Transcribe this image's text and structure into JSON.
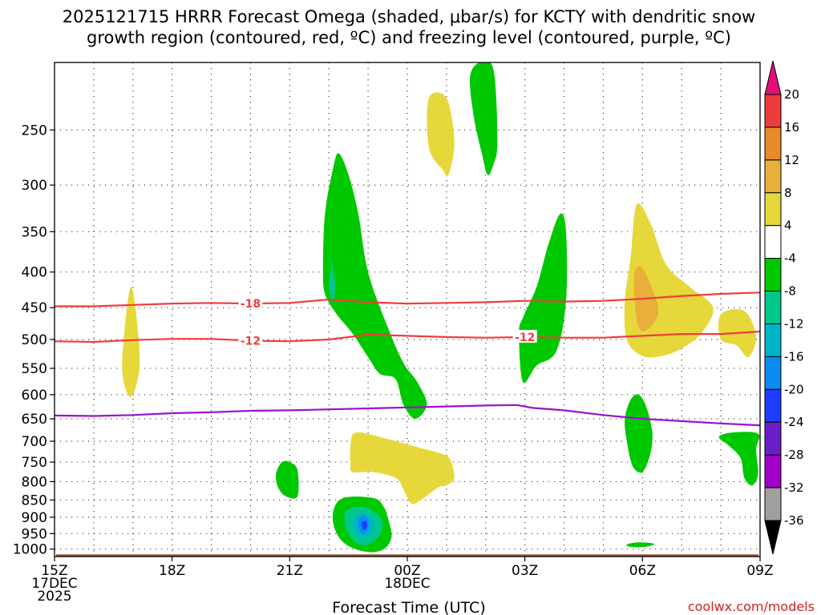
{
  "chart_data": {
    "type": "heatmap",
    "title_line1": "2025121715 HRRR Forecast Omega (shaded, μbar/s) for KCTY with dendritic snow",
    "title_line2": "growth region (contoured, red, ºC) and freezing level (contoured, purple, ºC)",
    "xlabel": "Forecast Time (UTC)",
    "credit": "coolwx.com/models",
    "x_range_hours": [
      0,
      18
    ],
    "x_ticks": [
      {
        "hour": 0,
        "lines": [
          "15Z",
          "17DEC",
          "2025"
        ]
      },
      {
        "hour": 3,
        "lines": [
          "18Z"
        ]
      },
      {
        "hour": 6,
        "lines": [
          "21Z"
        ]
      },
      {
        "hour": 9,
        "lines": [
          "00Z",
          "18DEC"
        ]
      },
      {
        "hour": 12,
        "lines": [
          "03Z"
        ]
      },
      {
        "hour": 15,
        "lines": [
          "06Z"
        ]
      },
      {
        "hour": 18,
        "lines": [
          "09Z"
        ]
      }
    ],
    "y_range_hpa": [
      1025,
      200
    ],
    "y_ticks": [
      250,
      300,
      350,
      400,
      450,
      500,
      550,
      600,
      650,
      700,
      750,
      800,
      850,
      900,
      950,
      1000
    ],
    "colorbar": {
      "labels": [
        "20",
        "16",
        "12",
        "8",
        "4",
        "-4",
        "-8",
        "-12",
        "-16",
        "-20",
        "-24",
        "-28",
        "-32",
        "-36"
      ],
      "bands": [
        {
          "lo": 16,
          "hi": 20,
          "color": "#ee3b3b"
        },
        {
          "lo": 12,
          "hi": 16,
          "color": "#e8892a"
        },
        {
          "lo": 8,
          "hi": 12,
          "color": "#e8b03a"
        },
        {
          "lo": 4,
          "hi": 8,
          "color": "#e6d83a"
        },
        {
          "lo": -4,
          "hi": 4,
          "color": "#ffffff"
        },
        {
          "lo": -8,
          "hi": -4,
          "color": "#00c800"
        },
        {
          "lo": -12,
          "hi": -8,
          "color": "#00c88c"
        },
        {
          "lo": -16,
          "hi": -12,
          "color": "#00b4c8"
        },
        {
          "lo": -20,
          "hi": -16,
          "color": "#0a8cf0"
        },
        {
          "lo": -24,
          "hi": -20,
          "color": "#1e3cff"
        },
        {
          "lo": -28,
          "hi": -24,
          "color": "#6a1ec8"
        },
        {
          "lo": -32,
          "hi": -28,
          "color": "#a000c8"
        },
        {
          "lo": -36,
          "hi": -32,
          "color": "#a0a0a0"
        }
      ],
      "overflow_high_color": "#e0107a",
      "overflow_low_color": "#000000"
    },
    "omega_regions": [
      {
        "name": "updraft-main-column",
        "value": -6,
        "color": "#00c800",
        "points": [
          [
            6.85,
            395
          ],
          [
            6.9,
            330
          ],
          [
            7.1,
            285
          ],
          [
            7.25,
            270
          ],
          [
            7.5,
            290
          ],
          [
            7.75,
            330
          ],
          [
            8.0,
            400
          ],
          [
            8.5,
            480
          ],
          [
            8.9,
            540
          ],
          [
            9.25,
            575
          ],
          [
            9.5,
            620
          ],
          [
            9.2,
            650
          ],
          [
            8.9,
            620
          ],
          [
            8.7,
            570
          ],
          [
            8.3,
            560
          ],
          [
            8.0,
            530
          ],
          [
            7.6,
            490
          ],
          [
            7.2,
            460
          ],
          [
            6.9,
            430
          ]
        ]
      },
      {
        "name": "updraft-main-core",
        "value": -9,
        "color": "#00c88c",
        "points": [
          [
            7.0,
            420
          ],
          [
            7.05,
            395
          ],
          [
            7.05,
            380
          ],
          [
            7.15,
            410
          ],
          [
            7.15,
            430
          ],
          [
            7.1,
            440
          ]
        ]
      },
      {
        "name": "updraft-top-01z",
        "value": -6,
        "color": "#00c800",
        "points": [
          [
            10.6,
            210
          ],
          [
            10.85,
            200
          ],
          [
            11.2,
            205
          ],
          [
            11.3,
            260
          ],
          [
            11.2,
            280
          ],
          [
            11.05,
            290
          ],
          [
            10.9,
            270
          ],
          [
            10.7,
            240
          ]
        ]
      },
      {
        "name": "updraft-03z-column",
        "value": -6,
        "color": "#00c800",
        "points": [
          [
            11.85,
            490
          ],
          [
            11.95,
            465
          ],
          [
            12.3,
            420
          ],
          [
            12.6,
            365
          ],
          [
            12.9,
            330
          ],
          [
            13.05,
            350
          ],
          [
            13.05,
            440
          ],
          [
            12.8,
            520
          ],
          [
            12.3,
            545
          ],
          [
            11.95,
            575
          ]
        ]
      },
      {
        "name": "updraft-05z-lower",
        "value": -6,
        "color": "#00c800",
        "points": [
          [
            14.55,
            650
          ],
          [
            14.7,
            610
          ],
          [
            14.9,
            600
          ],
          [
            15.1,
            625
          ],
          [
            15.25,
            680
          ],
          [
            15.2,
            730
          ],
          [
            15.0,
            775
          ],
          [
            14.75,
            760
          ],
          [
            14.6,
            700
          ]
        ]
      },
      {
        "name": "updraft-08z-lower",
        "value": -6,
        "color": "#00c800",
        "points": [
          [
            16.95,
            690
          ],
          [
            17.3,
            680
          ],
          [
            17.95,
            683
          ],
          [
            17.9,
            720
          ],
          [
            17.95,
            780
          ],
          [
            17.8,
            810
          ],
          [
            17.6,
            790
          ],
          [
            17.5,
            740
          ],
          [
            17.2,
            710
          ]
        ]
      },
      {
        "name": "updraft-21z-lower",
        "value": -6,
        "color": "#00c800",
        "points": [
          [
            5.65,
            780
          ],
          [
            5.8,
            750
          ],
          [
            6.0,
            750
          ],
          [
            6.2,
            770
          ],
          [
            6.2,
            840
          ],
          [
            5.9,
            840
          ],
          [
            5.7,
            815
          ]
        ]
      },
      {
        "name": "updraft-2230z-lower",
        "value": -6,
        "color": "#00c800",
        "points": [
          [
            7.35,
            845
          ],
          [
            8.15,
            845
          ],
          [
            8.4,
            870
          ],
          [
            8.5,
            900
          ],
          [
            8.6,
            960
          ],
          [
            8.4,
            1000
          ],
          [
            8.0,
            1010
          ],
          [
            7.5,
            990
          ],
          [
            7.2,
            950
          ],
          [
            7.1,
            890
          ]
        ]
      },
      {
        "name": "updraft-2230z-core1",
        "value": -9,
        "color": "#00c88c",
        "points": [
          [
            7.45,
            880
          ],
          [
            7.8,
            870
          ],
          [
            8.1,
            880
          ],
          [
            8.35,
            910
          ],
          [
            8.3,
            955
          ],
          [
            8.0,
            985
          ],
          [
            7.7,
            980
          ],
          [
            7.5,
            950
          ],
          [
            7.4,
            915
          ]
        ]
      },
      {
        "name": "updraft-2230z-core2",
        "value": -14,
        "color": "#00b4c8",
        "points": [
          [
            7.65,
            900
          ],
          [
            7.9,
            890
          ],
          [
            8.1,
            905
          ],
          [
            8.15,
            935
          ],
          [
            7.95,
            960
          ],
          [
            7.75,
            955
          ],
          [
            7.6,
            930
          ]
        ]
      },
      {
        "name": "updraft-2230z-core3",
        "value": -18,
        "color": "#0a8cf0",
        "points": [
          [
            7.75,
            910
          ],
          [
            7.9,
            895
          ],
          [
            8.0,
            910
          ],
          [
            8.0,
            935
          ],
          [
            7.9,
            950
          ],
          [
            7.8,
            940
          ]
        ]
      },
      {
        "name": "updraft-2230z-core4",
        "value": -22,
        "color": "#1e3cff",
        "points": [
          [
            7.85,
            915
          ],
          [
            7.95,
            912
          ],
          [
            7.97,
            930
          ],
          [
            7.9,
            940
          ],
          [
            7.85,
            930
          ]
        ]
      },
      {
        "name": "updraft-05z-surface",
        "value": -6,
        "color": "#00c800",
        "points": [
          [
            14.6,
            985
          ],
          [
            14.9,
            978
          ],
          [
            15.3,
            983
          ],
          [
            15.05,
            993
          ],
          [
            14.7,
            993
          ]
        ]
      },
      {
        "name": "subsidence-1630z",
        "value": 5,
        "color": "#e6d83a",
        "points": [
          [
            1.75,
            510
          ],
          [
            1.95,
            420
          ],
          [
            2.15,
            500
          ],
          [
            2.15,
            560
          ],
          [
            1.95,
            605
          ],
          [
            1.75,
            570
          ]
        ]
      },
      {
        "name": "subsidence-0030z-upper",
        "value": 5,
        "color": "#e6d83a",
        "points": [
          [
            9.55,
            225
          ],
          [
            10.0,
            225
          ],
          [
            10.2,
            260
          ],
          [
            10.05,
            290
          ],
          [
            9.9,
            285
          ],
          [
            9.55,
            265
          ]
        ]
      },
      {
        "name": "subsidence-06z",
        "value": 6,
        "color": "#e6d83a",
        "points": [
          [
            14.7,
            380
          ],
          [
            14.85,
            320
          ],
          [
            15.2,
            340
          ],
          [
            15.6,
            390
          ],
          [
            16.2,
            420
          ],
          [
            16.8,
            450
          ],
          [
            16.5,
            490
          ],
          [
            16.0,
            515
          ],
          [
            15.5,
            528
          ],
          [
            15.0,
            528
          ],
          [
            14.6,
            500
          ],
          [
            14.55,
            440
          ]
        ]
      },
      {
        "name": "subsidence-06z-core",
        "value": 10,
        "color": "#e8b03a",
        "points": [
          [
            14.8,
            400
          ],
          [
            15.0,
            395
          ],
          [
            15.3,
            430
          ],
          [
            15.4,
            460
          ],
          [
            15.1,
            485
          ],
          [
            14.9,
            480
          ],
          [
            14.8,
            440
          ]
        ]
      },
      {
        "name": "subsidence-08z",
        "value": 5,
        "color": "#e6d83a",
        "points": [
          [
            17.0,
            460
          ],
          [
            17.6,
            455
          ],
          [
            17.9,
            495
          ],
          [
            17.7,
            530
          ],
          [
            17.4,
            510
          ],
          [
            17.0,
            500
          ]
        ]
      },
      {
        "name": "subsidence-2330z-mid",
        "value": 5,
        "color": "#e6d83a",
        "points": [
          [
            7.55,
            710
          ],
          [
            7.7,
            680
          ],
          [
            8.5,
            695
          ],
          [
            9.3,
            715
          ],
          [
            9.9,
            730
          ],
          [
            10.1,
            745
          ],
          [
            10.2,
            790
          ],
          [
            10.0,
            810
          ],
          [
            9.8,
            815
          ],
          [
            9.35,
            850
          ],
          [
            9.1,
            860
          ],
          [
            8.9,
            820
          ],
          [
            8.7,
            790
          ],
          [
            8.1,
            775
          ],
          [
            7.6,
            775
          ],
          [
            7.55,
            750
          ]
        ]
      }
    ],
    "contours": [
      {
        "name": "dgz-minus18",
        "label": "-18",
        "label_at": 5.0,
        "color": "#f03c3c",
        "points": [
          [
            0,
            448
          ],
          [
            1.0,
            448
          ],
          [
            2.0,
            446
          ],
          [
            3.0,
            444
          ],
          [
            4.0,
            443
          ],
          [
            5.0,
            444
          ],
          [
            6.0,
            443
          ],
          [
            7.0,
            438
          ],
          [
            8.0,
            442
          ],
          [
            9.0,
            444
          ],
          [
            10.0,
            443
          ],
          [
            11.0,
            442
          ],
          [
            12.0,
            440
          ],
          [
            13.0,
            441
          ],
          [
            14.0,
            440
          ],
          [
            15.0,
            437
          ],
          [
            16.0,
            433
          ],
          [
            17.0,
            430
          ],
          [
            18.0,
            428
          ]
        ]
      },
      {
        "name": "dgz-minus12",
        "label": "-12",
        "label_at": 5.0,
        "color": "#f03c3c",
        "points": [
          [
            0,
            503
          ],
          [
            1.0,
            504
          ],
          [
            2.0,
            501
          ],
          [
            3.0,
            499
          ],
          [
            4.0,
            499
          ],
          [
            5.0,
            502
          ],
          [
            6.0,
            503
          ],
          [
            7.0,
            500
          ],
          [
            8.0,
            492
          ],
          [
            9.0,
            494
          ],
          [
            10.0,
            496
          ],
          [
            11.0,
            497
          ],
          [
            12.0,
            496
          ],
          [
            13.0,
            497
          ],
          [
            14.0,
            497
          ],
          [
            15.0,
            494
          ],
          [
            16.0,
            491
          ],
          [
            17.0,
            491
          ],
          [
            18.0,
            487
          ]
        ]
      },
      {
        "name": "dgz-minus12-right",
        "label": "-12",
        "label_at": 12.0,
        "color": "#f03c3c",
        "points": []
      },
      {
        "name": "freezing-level",
        "label": "",
        "label_at": null,
        "color": "#9b10d0",
        "points": [
          [
            0,
            643
          ],
          [
            1.0,
            644
          ],
          [
            2.0,
            642
          ],
          [
            3.0,
            638
          ],
          [
            4.0,
            636
          ],
          [
            5.0,
            633
          ],
          [
            6.0,
            632
          ],
          [
            7.0,
            630
          ],
          [
            8.0,
            628
          ],
          [
            9.0,
            626
          ],
          [
            10.0,
            624
          ],
          [
            11.0,
            622
          ],
          [
            11.8,
            621
          ],
          [
            12.2,
            627
          ],
          [
            13.0,
            632
          ],
          [
            14.0,
            642
          ],
          [
            15.0,
            650
          ],
          [
            16.0,
            655
          ],
          [
            17.0,
            660
          ],
          [
            18.0,
            664
          ]
        ]
      }
    ],
    "terrain": {
      "name": "ground",
      "color": "#a0522d",
      "pressure_hpa": 1015
    }
  }
}
